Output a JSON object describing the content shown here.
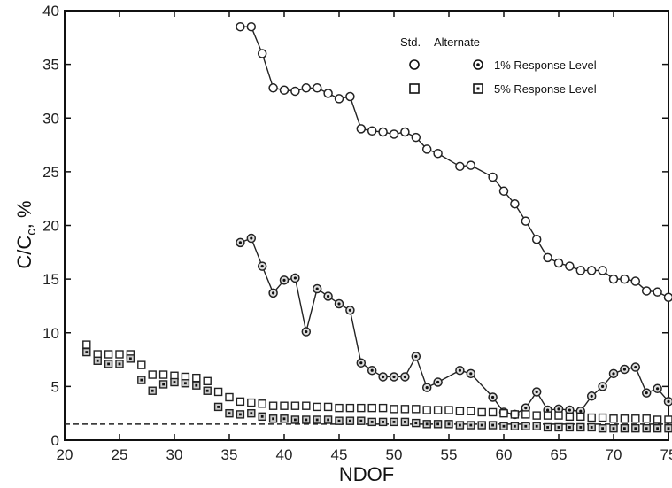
{
  "chart_data": {
    "type": "scatter",
    "xlabel": "NDOF",
    "ylabel": "C/C",
    "ylabel_sub": "c",
    "ylabel_unit": ", %",
    "xlim": [
      20,
      75
    ],
    "ylim": [
      0,
      40
    ],
    "xticks": [
      20,
      25,
      30,
      35,
      40,
      45,
      50,
      55,
      60,
      65,
      70,
      75
    ],
    "yticks": [
      0,
      5,
      10,
      15,
      20,
      25,
      30,
      35,
      40
    ],
    "legend": {
      "header_std": "Std.",
      "header_alt": "Alternate",
      "rows": [
        {
          "label": "1% Response Level",
          "std_marker": "open-circle",
          "alt_marker": "dotted-circle"
        },
        {
          "label": "5% Response Level",
          "std_marker": "open-square",
          "alt_marker": "dotted-square"
        }
      ]
    },
    "reference_line": {
      "y": 1.5,
      "style": "dashed"
    },
    "series": [
      {
        "key": "std_1pct",
        "marker": "open-circle",
        "connected": true,
        "x": [
          36,
          37,
          38,
          39,
          40,
          41,
          42,
          43,
          44,
          45,
          46,
          47,
          48,
          49,
          50,
          51,
          52,
          53,
          54,
          56,
          57,
          59,
          60,
          61,
          62,
          63,
          64,
          65,
          66,
          67,
          68,
          69,
          70,
          71,
          72,
          73,
          74,
          75
        ],
        "y": [
          38.5,
          38.5,
          36.0,
          32.8,
          32.6,
          32.5,
          32.8,
          32.8,
          32.3,
          31.8,
          32.0,
          29.0,
          28.8,
          28.7,
          28.5,
          28.7,
          28.2,
          27.1,
          26.7,
          25.5,
          25.6,
          24.5,
          23.2,
          22.0,
          20.4,
          18.7,
          17.0,
          16.5,
          16.2,
          15.8,
          15.8,
          15.8,
          15.0,
          15.0,
          14.8,
          13.9,
          13.8,
          13.3
        ]
      },
      {
        "key": "alt_1pct",
        "marker": "dotted-circle",
        "connected": true,
        "x": [
          36,
          37,
          38,
          39,
          40,
          41,
          42,
          43,
          44,
          45,
          46,
          47,
          48,
          49,
          50,
          51,
          52,
          53,
          54,
          56,
          57,
          59,
          60,
          61,
          62,
          63,
          64,
          65,
          66,
          67,
          68,
          69,
          70,
          71,
          72,
          73,
          74,
          75
        ],
        "y": [
          18.4,
          18.8,
          16.2,
          13.7,
          14.9,
          15.1,
          10.1,
          14.1,
          13.4,
          12.7,
          12.1,
          7.2,
          6.5,
          5.9,
          5.9,
          5.9,
          7.8,
          4.9,
          5.4,
          6.5,
          6.2,
          4.0,
          2.6,
          2.4,
          3.0,
          4.5,
          2.8,
          2.9,
          2.8,
          2.7,
          4.1,
          5.0,
          6.2,
          6.6,
          6.8,
          4.4,
          4.8,
          3.6
        ]
      },
      {
        "key": "std_5pct",
        "marker": "open-square",
        "connected": false,
        "x": [
          22,
          23,
          24,
          25,
          26,
          27,
          28,
          29,
          30,
          31,
          32,
          33,
          34,
          35,
          36,
          37,
          38,
          39,
          40,
          41,
          42,
          43,
          44,
          45,
          46,
          47,
          48,
          49,
          50,
          51,
          52,
          53,
          54,
          55,
          56,
          57,
          58,
          59,
          60,
          61,
          62,
          63,
          64,
          65,
          66,
          67,
          68,
          69,
          70,
          71,
          72,
          73,
          74,
          75
        ],
        "y": [
          8.9,
          8.0,
          8.0,
          8.0,
          8.0,
          7.0,
          6.1,
          6.1,
          6.0,
          5.9,
          5.8,
          5.5,
          4.5,
          4.0,
          3.6,
          3.5,
          3.4,
          3.2,
          3.2,
          3.2,
          3.2,
          3.1,
          3.1,
          3.0,
          3.0,
          3.0,
          3.0,
          3.0,
          2.9,
          2.9,
          2.9,
          2.8,
          2.8,
          2.8,
          2.7,
          2.7,
          2.6,
          2.6,
          2.5,
          2.4,
          2.4,
          2.3,
          2.3,
          2.3,
          2.2,
          2.2,
          2.1,
          2.1,
          2.0,
          2.0,
          2.0,
          2.0,
          1.9,
          1.9
        ]
      },
      {
        "key": "alt_5pct",
        "marker": "dotted-square",
        "connected": false,
        "x": [
          22,
          23,
          24,
          25,
          26,
          27,
          28,
          29,
          30,
          31,
          32,
          33,
          34,
          35,
          36,
          37,
          38,
          39,
          40,
          41,
          42,
          43,
          44,
          45,
          46,
          47,
          48,
          49,
          50,
          51,
          52,
          53,
          54,
          55,
          56,
          57,
          58,
          59,
          60,
          61,
          62,
          63,
          64,
          65,
          66,
          67,
          68,
          69,
          70,
          71,
          72,
          73,
          74,
          75
        ],
        "y": [
          8.2,
          7.4,
          7.1,
          7.1,
          7.6,
          5.6,
          4.6,
          5.2,
          5.4,
          5.3,
          5.1,
          4.6,
          3.1,
          2.5,
          2.4,
          2.5,
          2.2,
          2.0,
          2.0,
          1.9,
          1.9,
          1.9,
          1.9,
          1.8,
          1.8,
          1.8,
          1.7,
          1.7,
          1.7,
          1.7,
          1.6,
          1.5,
          1.5,
          1.5,
          1.4,
          1.4,
          1.4,
          1.4,
          1.3,
          1.3,
          1.3,
          1.3,
          1.2,
          1.2,
          1.2,
          1.2,
          1.2,
          1.1,
          1.1,
          1.1,
          1.1,
          1.1,
          1.1,
          1.1
        ]
      }
    ]
  }
}
